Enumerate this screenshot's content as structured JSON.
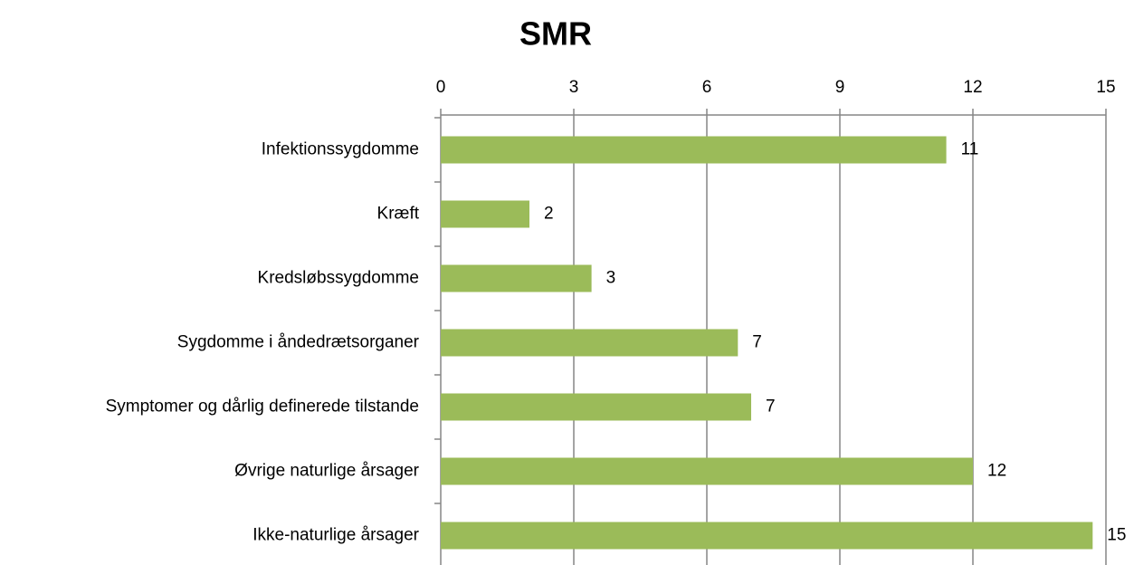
{
  "chart_data": {
    "type": "hbar",
    "title": "SMR",
    "categories": [
      "Infektionssygdomme",
      "Kræft",
      "Kredsløbssygdomme",
      "Sygdomme i åndedrætsorganer",
      "Symptomer og dårlig definerede tilstande",
      "Øvrige naturlige årsager",
      "Ikke-naturlige årsager"
    ],
    "values": [
      11.4,
      2.0,
      3.4,
      6.7,
      7.0,
      12.0,
      14.7
    ],
    "value_labels": [
      "11",
      "2",
      "3",
      "7",
      "7",
      "12",
      "15"
    ],
    "color": "#9bbb59",
    "xlim": [
      0,
      15
    ],
    "xticks": [
      0,
      3,
      6,
      9,
      12,
      15
    ],
    "grid": true
  }
}
